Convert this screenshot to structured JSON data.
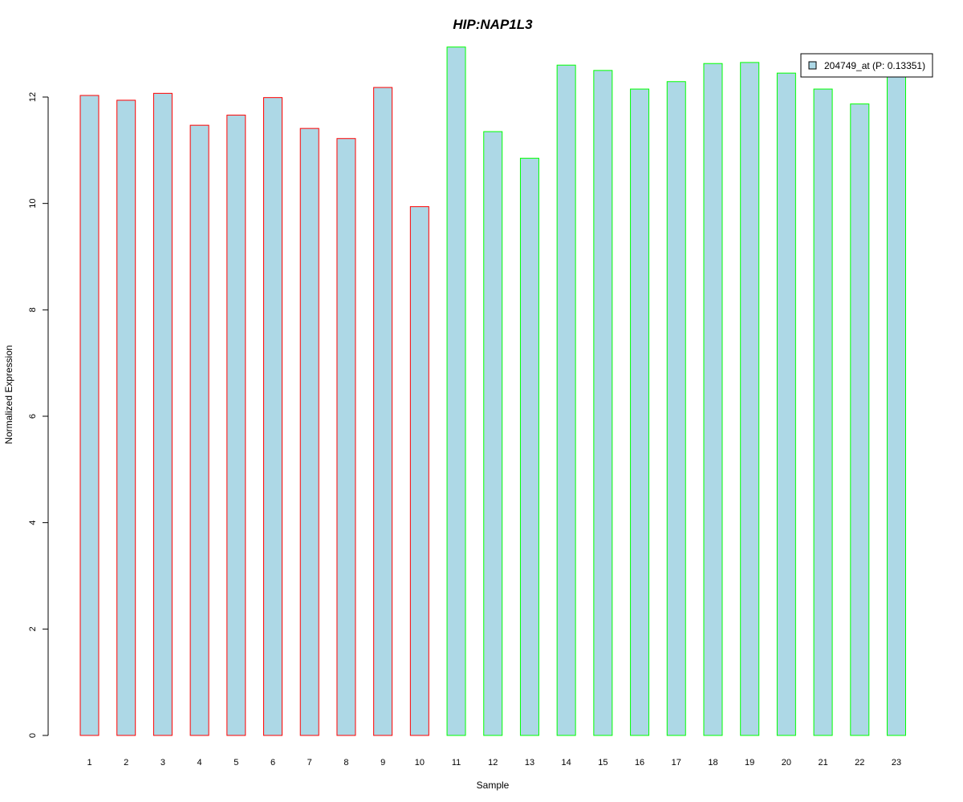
{
  "colors": {
    "title": "#0000cc",
    "bar_fill": "#add8e6",
    "group1_border": "#ff0000",
    "group2_border": "#00ff00",
    "axis": "#000000"
  },
  "chart_data": {
    "type": "bar",
    "title": "HIP:NAP1L3",
    "xlabel": "Sample",
    "ylabel": "Normalized Expression",
    "ylim": [
      0,
      13
    ],
    "yticks": [
      0,
      2,
      4,
      6,
      8,
      10,
      12
    ],
    "grid": false,
    "legend_position": "top-right",
    "categories": [
      "1",
      "2",
      "3",
      "4",
      "5",
      "6",
      "7",
      "8",
      "9",
      "10",
      "11",
      "12",
      "13",
      "14",
      "15",
      "16",
      "17",
      "18",
      "19",
      "20",
      "21",
      "22",
      "23"
    ],
    "series": [
      {
        "name": "204749_at (P: 0.13351)",
        "values": [
          12.03,
          11.94,
          12.07,
          11.47,
          11.66,
          11.99,
          11.41,
          11.22,
          12.18,
          9.94,
          12.94,
          11.35,
          10.85,
          12.6,
          12.5,
          12.15,
          12.29,
          12.63,
          12.65,
          12.45,
          12.15,
          11.87,
          12.45
        ],
        "border_groups": [
          1,
          1,
          1,
          1,
          1,
          1,
          1,
          1,
          1,
          1,
          2,
          2,
          2,
          2,
          2,
          2,
          2,
          2,
          2,
          2,
          2,
          2,
          2
        ]
      }
    ]
  }
}
